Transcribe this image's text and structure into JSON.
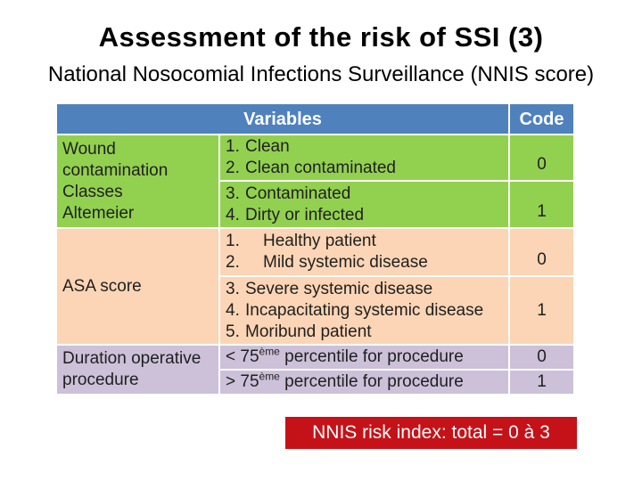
{
  "slide": {
    "title": "Assessment of the risk of SSI (3)",
    "subtitle": "National Nosocomial Infections Surveillance (NNIS score)"
  },
  "table": {
    "header": {
      "variables": "Variables",
      "code": "Code"
    },
    "groups": [
      {
        "label_lines": [
          "Wound",
          "contamination",
          "Classes",
          "Altemeier"
        ],
        "rows": [
          {
            "items": [
              {
                "n": "1.",
                "t": "Clean"
              },
              {
                "n": "2.",
                "t": "Clean contaminated"
              }
            ],
            "code": "0"
          },
          {
            "items": [
              {
                "n": "3.",
                "t": "Contaminated"
              },
              {
                "n": "4.",
                "t": "Dirty or infected"
              }
            ],
            "code": "1"
          }
        ]
      },
      {
        "label_lines": [
          "ASA score"
        ],
        "rows": [
          {
            "items": [
              {
                "n": "1.",
                "t": "Healthy patient"
              },
              {
                "n": "2.",
                "t": "Mild systemic disease"
              }
            ],
            "code": "0"
          },
          {
            "items": [
              {
                "n": "3.",
                "t": "Severe systemic disease"
              },
              {
                "n": "4.",
                "t": "Incapacitating systemic disease"
              },
              {
                "n": "5.",
                "t": "Moribund patient"
              }
            ],
            "code": "1"
          }
        ]
      },
      {
        "label_lines": [
          "Duration operative",
          "procedure"
        ],
        "rows": [
          {
            "items": [
              {
                "pre": "< 75",
                "sup": "ème",
                "post": " percentile for procedure"
              }
            ],
            "code": "0"
          },
          {
            "items": [
              {
                "pre": "> 75",
                "sup": "ème",
                "post": " percentile for procedure"
              }
            ],
            "code": "1"
          }
        ]
      }
    ]
  },
  "banner": {
    "text": "NNIS risk index: total = 0 à 3"
  },
  "colors": {
    "header_blue": "#4F81BD",
    "wound_green": "#92D050",
    "asa_peach": "#FBD5B5",
    "duration_lavender": "#CCC1D9",
    "banner_red": "#C51218",
    "text": "#1F1F1F"
  }
}
